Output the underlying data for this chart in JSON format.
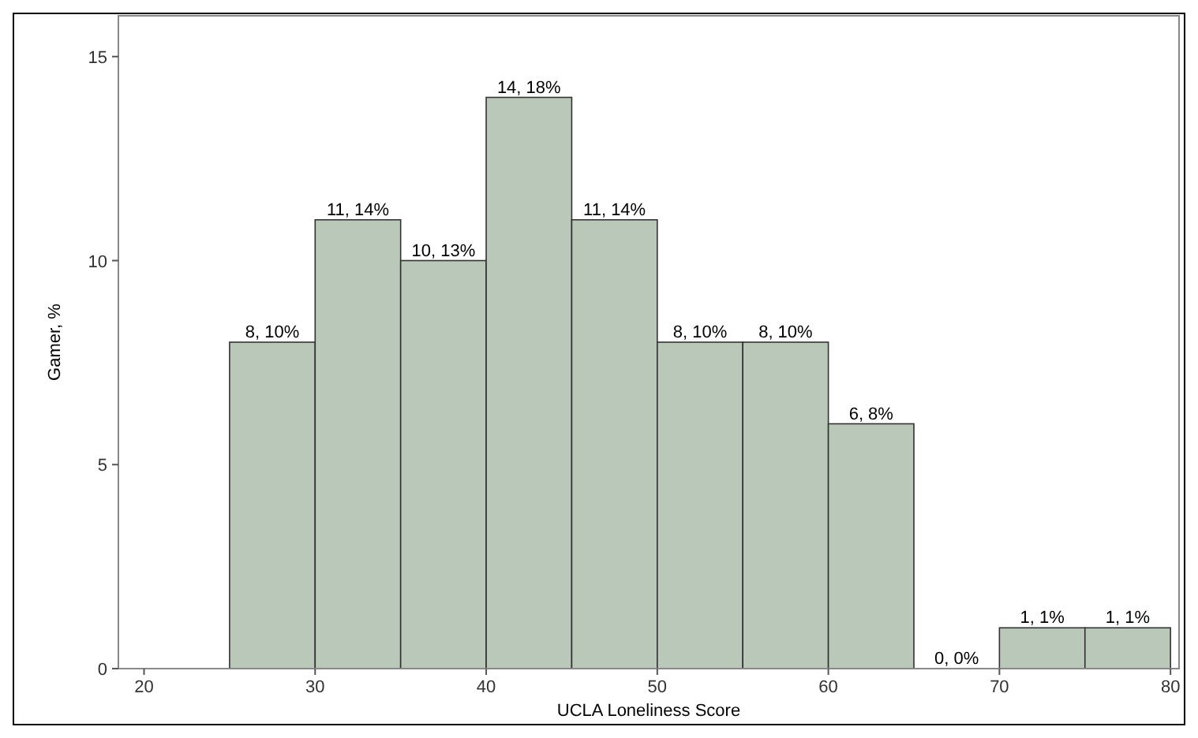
{
  "chart_data": {
    "type": "histogram",
    "xlabel": "UCLA Loneliness Score",
    "ylabel": "Gamer, %",
    "bins": [
      25,
      30,
      35,
      40,
      45,
      50,
      55,
      60,
      65,
      70,
      75,
      80
    ],
    "values": [
      8,
      11,
      10,
      14,
      11,
      8,
      8,
      6,
      0,
      1,
      1
    ],
    "value_labels": [
      "8, 10%",
      "11, 14%",
      "10, 13%",
      "14, 18%",
      "11, 14%",
      "8, 10%",
      "8, 10%",
      "6, 8%",
      "0, 0%",
      "1, 1%",
      "1, 1%"
    ],
    "color": "#b9c8b8",
    "xlim": [
      18.5,
      80.5
    ],
    "xticks": [
      20,
      30,
      40,
      50,
      60,
      70,
      80
    ],
    "ylim": [
      0,
      16
    ],
    "yticks": [
      0,
      5,
      10,
      15
    ],
    "grid": false
  }
}
